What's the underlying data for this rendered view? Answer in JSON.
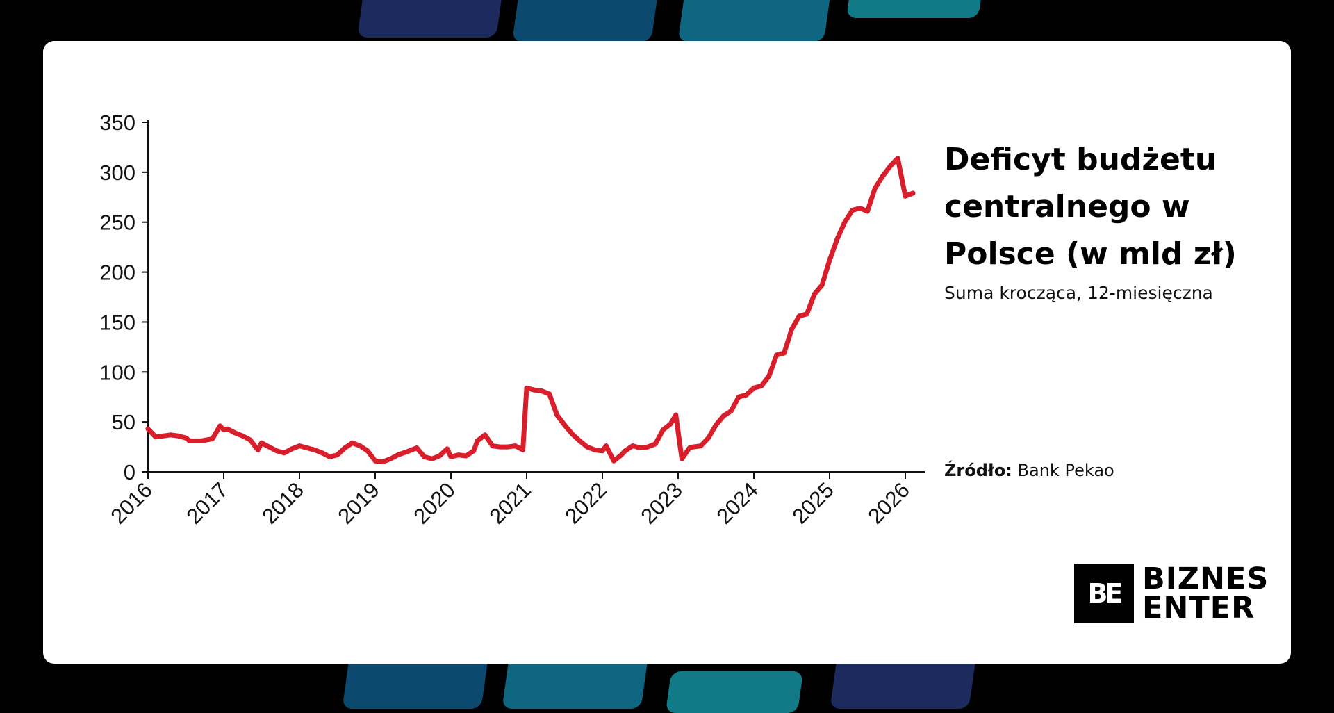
{
  "colors": {
    "background": "#000000",
    "card": "#ffffff",
    "line": "#d81e2b",
    "deco": [
      "#1c2a5e",
      "#0b4a6e",
      "#0e6680",
      "#127a87"
    ]
  },
  "header": {
    "title": "Deficyt budżetu centralnego w Polsce (w mld zł)",
    "subtitle": "Suma krocząca, 12-miesięczna"
  },
  "source": {
    "label": "Źródło:",
    "value": "Bank Pekao"
  },
  "logo": {
    "mark": "BE",
    "line1": "BIZNES",
    "line2": "ENTER"
  },
  "chart_data": {
    "type": "line",
    "title": "Deficyt budżetu centralnego w Polsce (w mld zł)",
    "subtitle": "Suma krocząca, 12-miesięczna",
    "xlabel": "",
    "ylabel": "",
    "xlim": [
      2016,
      2026.2
    ],
    "ylim": [
      0,
      350
    ],
    "y_ticks": [
      0,
      50,
      100,
      150,
      200,
      250,
      300,
      350
    ],
    "x_ticks": [
      "2016",
      "2017",
      "2018",
      "2019",
      "2020",
      "2021",
      "2022",
      "2023",
      "2024",
      "2025",
      "2026"
    ],
    "grid": false,
    "legend": "none",
    "series": [
      {
        "x": [
          2016.0,
          2016.1,
          2016.2,
          2016.3,
          2016.4,
          2016.5,
          2016.55,
          2016.7,
          2016.85,
          2016.95,
          2017.0,
          2017.05,
          2017.15,
          2017.25,
          2017.35,
          2017.45,
          2017.5,
          2017.6,
          2017.7,
          2017.8,
          2017.9,
          2018.0,
          2018.1,
          2018.2,
          2018.3,
          2018.4,
          2018.5,
          2018.6,
          2018.7,
          2018.8,
          2018.9,
          2019.0,
          2019.1,
          2019.2,
          2019.3,
          2019.45,
          2019.55,
          2019.65,
          2019.75,
          2019.85,
          2019.95,
          2020.0,
          2020.1,
          2020.2,
          2020.3,
          2020.35,
          2020.45,
          2020.55,
          2020.65,
          2020.75,
          2020.85,
          2020.95,
          2021.0,
          2021.1,
          2021.2,
          2021.3,
          2021.4,
          2021.5,
          2021.6,
          2021.7,
          2021.8,
          2021.9,
          2022.0,
          2022.05,
          2022.15,
          2022.25,
          2022.3,
          2022.4,
          2022.5,
          2022.6,
          2022.7,
          2022.8,
          2022.9,
          2022.97,
          2023.05,
          2023.15,
          2023.2,
          2023.3,
          2023.4,
          2023.5,
          2023.6,
          2023.7,
          2023.8,
          2023.9,
          2024.0,
          2024.1,
          2024.2,
          2024.3,
          2024.4,
          2024.5,
          2024.6,
          2024.7,
          2024.8,
          2024.9,
          2025.0,
          2025.1,
          2025.2,
          2025.3,
          2025.4,
          2025.5,
          2025.6,
          2025.7,
          2025.8,
          2025.9,
          2026.0,
          2026.1
        ],
        "values": [
          43,
          35,
          36,
          37,
          36,
          34,
          31,
          31,
          33,
          46,
          42,
          43,
          39,
          36,
          32,
          22,
          29,
          25,
          21,
          19,
          23,
          26,
          24,
          22,
          19,
          15,
          17,
          24,
          29,
          26,
          21,
          11,
          10,
          13,
          17,
          21,
          24,
          15,
          13,
          16,
          23,
          15,
          17,
          16,
          21,
          31,
          37,
          26,
          25,
          25,
          26,
          22,
          84,
          82,
          81,
          78,
          57,
          47,
          38,
          31,
          25,
          22,
          21,
          26,
          11,
          17,
          21,
          26,
          24,
          25,
          28,
          42,
          48,
          57,
          13,
          24,
          25,
          26,
          34,
          47,
          56,
          61,
          75,
          77,
          84,
          86,
          96,
          117,
          119,
          143,
          156,
          158,
          178,
          187,
          212,
          233,
          250,
          262,
          264,
          261,
          284,
          296,
          306,
          314,
          276,
          279
        ]
      }
    ]
  }
}
